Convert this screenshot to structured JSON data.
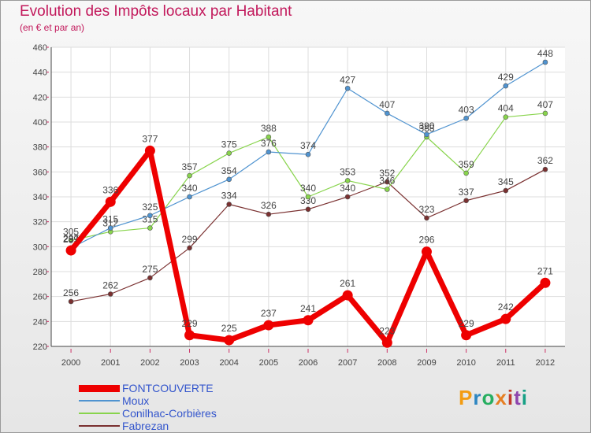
{
  "title": "Evolution des Impôts locaux par Habitant",
  "subtitle": "(en € et par an)",
  "logo": {
    "letters": [
      "P",
      "r",
      "o",
      "x",
      "i",
      "t",
      "i"
    ],
    "colors": [
      "#f39c12",
      "#2e86c1",
      "#27ae60",
      "#e67e22",
      "#c0392b",
      "#8e44ad",
      "#16a085"
    ]
  },
  "chart_data": {
    "type": "line",
    "title": "Evolution des Impôts locaux par Habitant",
    "subtitle": "(en € et par an)",
    "x": [
      "2000",
      "2001",
      "2002",
      "2003",
      "2004",
      "2005",
      "2006",
      "2007",
      "2008",
      "2009",
      "2010",
      "2011",
      "2012"
    ],
    "ylim": [
      220,
      460
    ],
    "yticks": [
      "220",
      "240",
      "260",
      "280",
      "300",
      "320",
      "340",
      "360",
      "380",
      "400",
      "420",
      "440",
      "460"
    ],
    "grid": true,
    "legend_position": "bottom-left",
    "series": [
      {
        "name": "FONTCOUVERTE",
        "color": "#ee0000",
        "values": [
          297,
          336,
          377,
          229,
          225,
          237,
          241,
          261,
          223,
          296,
          229,
          242,
          271
        ],
        "labels": [
          "297",
          "336",
          "377",
          "229",
          "225",
          "237",
          "241",
          "261",
          "223",
          "296",
          "229",
          "242",
          "271"
        ]
      },
      {
        "name": "Moux",
        "color": "#4f93d0",
        "values": [
          299,
          315,
          325,
          340,
          354,
          376,
          374,
          427,
          407,
          390,
          403,
          429,
          448
        ],
        "labels": [
          "299",
          "315",
          "325",
          "340",
          "354",
          "376",
          "374",
          "427",
          "407",
          "390",
          "403",
          "429",
          "448"
        ]
      },
      {
        "name": "Conilhac-Corbières",
        "color": "#88d44c",
        "values": [
          305,
          312,
          315,
          357,
          375,
          388,
          340,
          353,
          346,
          388,
          359,
          404,
          407
        ],
        "labels": [
          "305",
          "312",
          "315",
          "357",
          "375",
          "388",
          "340",
          "353",
          "346",
          "388",
          "359",
          "404",
          "407"
        ]
      },
      {
        "name": "Fabrezan",
        "color": "#7a3030",
        "values": [
          256,
          262,
          275,
          299,
          334,
          326,
          330,
          340,
          352,
          323,
          337,
          345,
          362
        ],
        "labels": [
          "256",
          "262",
          "275",
          "299",
          "334",
          "326",
          "330",
          "340",
          "352",
          "323",
          "337",
          "345",
          "362"
        ]
      }
    ]
  }
}
